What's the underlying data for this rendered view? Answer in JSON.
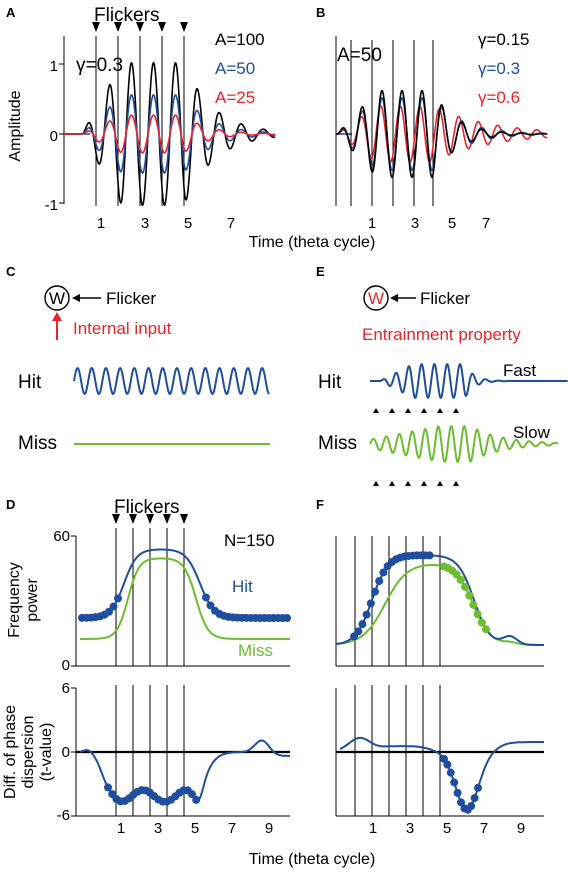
{
  "colors": {
    "black": "#000000",
    "blue": "#1f4e9e",
    "red": "#e8232a",
    "green": "#6cbd2f"
  },
  "panelA": {
    "label": "A",
    "title": "Flickers",
    "gamma_text": "γ=0.3",
    "ylabel": "Amplitude",
    "yticks": [
      "1",
      "0",
      "-1"
    ],
    "xticks": [
      "1",
      "3",
      "5",
      "7"
    ],
    "legend": [
      {
        "text": "A=100",
        "color": "#000000"
      },
      {
        "text": "A=50",
        "color": "#1f4e9e"
      },
      {
        "text": "A=25",
        "color": "#e8232a"
      }
    ]
  },
  "panelB": {
    "label": "B",
    "amp_text": "A=50",
    "xticks": [
      "1",
      "3",
      "5",
      "7"
    ],
    "legend": [
      {
        "text": "γ=0.15",
        "color": "#000000"
      },
      {
        "text": "γ=0.3",
        "color": "#1f4e9e"
      },
      {
        "text": "γ=0.6",
        "color": "#e8232a"
      }
    ]
  },
  "xlabel_top": "Time (theta cycle)",
  "panelC": {
    "label": "C",
    "node": "W",
    "flicker": "Flicker",
    "input": "Internal input",
    "hit": "Hit",
    "miss": "Miss"
  },
  "panelE": {
    "label": "E",
    "node": "W",
    "flicker": "Flicker",
    "property": "Entrainment property",
    "hit": "Hit",
    "miss": "Miss",
    "fast": "Fast",
    "slow": "Slow"
  },
  "panelD": {
    "label": "D",
    "title": "Flickers",
    "n_text": "N=150",
    "ylabel1": "Frequency",
    "ylabel2": "power",
    "yticks": [
      "60",
      "0"
    ],
    "hit": "Hit",
    "miss": "Miss",
    "ylabel_b1": "Diff. of phase",
    "ylabel_b2": "dispersion",
    "ylabel_b3": "(t-value)",
    "yticks_b": [
      "6",
      "0",
      "-6"
    ],
    "xticks": [
      "1",
      "3",
      "5",
      "7",
      "9"
    ]
  },
  "panelF": {
    "label": "F",
    "xticks": [
      "1",
      "3",
      "5",
      "7",
      "9"
    ]
  },
  "xlabel_bottom": "Time (theta cycle)"
}
